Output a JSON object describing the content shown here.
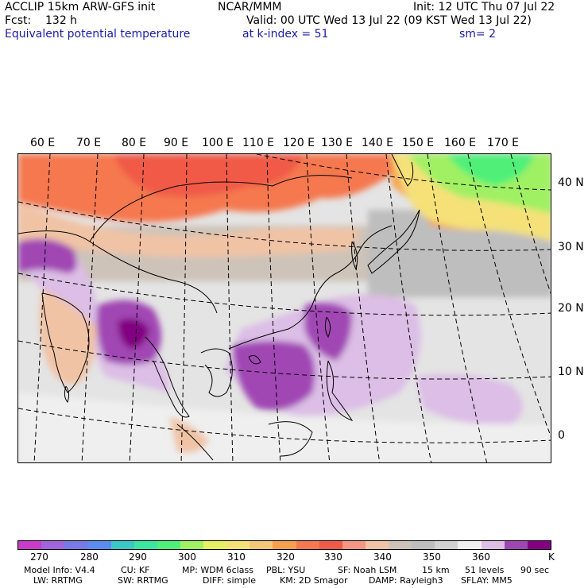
{
  "header": {
    "model": "ACCLIP 15km ARW-GFS init",
    "org": "NCAR/MMM",
    "init": "Init: 12 UTC Thu 07 Jul 22",
    "fcst_label": "Fcst:",
    "fcst_value": "132 h",
    "valid": "Valid: 00 UTC Wed 13 Jul 22 (09 KST Wed 13 Jul 22)",
    "field": "Equivalent potential temperature",
    "level": "at k-index =  51",
    "smooth": "sm= 2"
  },
  "map": {
    "lon_labels": [
      "60 E",
      "70 E",
      "80 E",
      "90 E",
      "100 E",
      "110 E",
      "120 E",
      "130 E",
      "140 E",
      "150 E",
      "160 E",
      "170 E"
    ],
    "lat_labels": [
      "40 N",
      "30 N",
      "20 N",
      "10 N",
      "0"
    ]
  },
  "colorbar": {
    "colors": [
      "#c83cc8",
      "#a064dc",
      "#7878e6",
      "#5a8cf0",
      "#3cc8c8",
      "#3ce6a0",
      "#50f078",
      "#a0f064",
      "#e6f064",
      "#f5e178",
      "#f5c878",
      "#f5a050",
      "#f57850",
      "#f05a46",
      "#f59682",
      "#f0c3a5",
      "#cdc3b9",
      "#bebebe",
      "#d2d2d2",
      "#f0f0f0",
      "#dcbee6",
      "#a046b4",
      "#820082"
    ],
    "ticks": [
      "270",
      "280",
      "290",
      "300",
      "310",
      "320",
      "330",
      "340",
      "350",
      "360"
    ],
    "unit": "K"
  },
  "footer": {
    "line1": [
      "Model Info: V4.4",
      "CU: KF",
      "MP: WDM 6class",
      "PBL: YSU",
      "SF: Noah LSM",
      "15 km",
      "51 levels",
      "90 sec"
    ],
    "line2": [
      "LW: RRTMG",
      "SW: RRTMG",
      "DIFF: simple",
      "KM: 2D Smagor",
      "DAMP: Rayleigh3",
      "SFLAY: MM5"
    ]
  }
}
